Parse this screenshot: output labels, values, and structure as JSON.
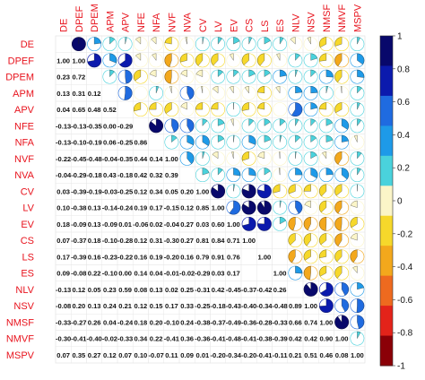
{
  "chart_data": {
    "type": "heatmap",
    "title": "",
    "variables": [
      "DE",
      "DPEF",
      "DPEM",
      "APM",
      "APV",
      "NFE",
      "NFA",
      "NVF",
      "NVA",
      "CV",
      "LV",
      "EV",
      "CS",
      "LS",
      "ES",
      "NLV",
      "NSV",
      "NMSF",
      "NMVF",
      "MSPV"
    ],
    "lower_triangle": [
      [],
      [
        "1.00"
      ],
      [
        "0.23",
        "0.72"
      ],
      [
        "0.13",
        "0.31",
        "0.12"
      ],
      [
        "0.04",
        "0.65",
        "0.48",
        "0.52"
      ],
      [
        "-0.13",
        "-0.13",
        "-0.35",
        "0.00",
        "-0.29"
      ],
      [
        "-0.13",
        "-0.10",
        "-0.19",
        "0.06",
        "-0.25",
        "0.86"
      ],
      [
        "-0.22",
        "-0.45",
        "-0.48",
        "-0.04",
        "-0.35",
        "0.44",
        "0.14"
      ],
      [
        "-0.04",
        "-0.29",
        "-0.18",
        "0.43",
        "-0.18",
        "0.42",
        "0.32",
        "0.39"
      ],
      [
        "0.03",
        "-0.39",
        "-0.19",
        "-0.03",
        "-0.25",
        "0.12",
        "0.34",
        "0.05",
        "0.20"
      ],
      [
        "0.10",
        "-0.38",
        "0.13",
        "-0.14",
        "-0.24",
        "0.19",
        "0.17",
        "-0.15",
        "0.12",
        "0.85"
      ],
      [
        "0.18",
        "-0.09",
        "0.13",
        "-0.09",
        "0.01",
        "-0.06",
        "0.02",
        "-0.04",
        "0.27",
        "0.03",
        "0.60"
      ],
      [
        "0.07",
        "-0.37",
        "0.18",
        "-0.10",
        "-0.28",
        "0.12",
        "0.31",
        "-0.30",
        "0.27",
        "0.81",
        "0.84",
        "0.71"
      ],
      [
        "0.17",
        "-0.39",
        "0.16",
        "-0.23",
        "-0.22",
        "0.16",
        "0.19",
        "-0.20",
        "0.16",
        "0.79",
        "0.91",
        "0.76"
      ],
      [
        "0.09",
        "-0.08",
        "0.22",
        "-0.10",
        "0.00",
        "0.14",
        "0.04",
        "-0.01",
        "-0.02",
        "-0.29",
        "0.03",
        "0.17"
      ],
      [
        "-0.13",
        "0.12",
        "0.05",
        "0.23",
        "0.59",
        "0.08",
        "0.13",
        "0.02",
        "0.25",
        "-0.31",
        "0.42",
        "-0.45",
        "-0.37",
        "-0.42",
        "0.26"
      ],
      [
        "-0.08",
        "0.20",
        "0.13",
        "0.24",
        "0.21",
        "0.12",
        "0.15",
        "0.17",
        "0.33",
        "-0.25",
        "-0.18",
        "-0.43",
        "-0.40",
        "-0.34",
        "-0.48",
        "0.89"
      ],
      [
        "-0.33",
        "-0.27",
        "0.26",
        "0.04",
        "-0.24",
        "0.18",
        "0.20",
        "-0.10",
        "0.24",
        "-0.38",
        "-0.37",
        "-0.49",
        "-0.36",
        "-0.28",
        "-0.33",
        "0.66",
        "0.74"
      ],
      [
        "-0.30",
        "-0.41",
        "-0.40",
        "-0.02",
        "-0.33",
        "0.34",
        "0.22",
        "-0.41",
        "0.36",
        "-0.36",
        "-0.41",
        "-0.48",
        "-0.41",
        "-0.38",
        "-0.39",
        "0.42",
        "0.42",
        "0.90"
      ],
      [
        "0.07",
        "0.35",
        "0.27",
        "0.12",
        "0.07",
        "0.10",
        "-0.07",
        "0.11",
        "0.09",
        "0.01",
        "-0.20",
        "-0.34",
        "-0.20",
        "-0.41",
        "-0.11",
        "0.21",
        "0.51",
        "0.46",
        "0.08"
      ]
    ],
    "diagonal_value": "1.00",
    "diagonal_rows": [
      "DPEF",
      "NVF",
      "CV",
      "LV",
      "EV",
      "CS",
      "LS",
      "ES",
      "NSV",
      "NMSF",
      "NMVF",
      "MSPV"
    ],
    "colorbar": {
      "range": [
        -1,
        1
      ],
      "ticks": [
        "1",
        "0.8",
        "0.6",
        "0.4",
        "0.2",
        "0",
        "-0.2",
        "-0.4",
        "-0.6",
        "-0.8",
        "-1"
      ],
      "colors": [
        "#08086b",
        "#0b1aad",
        "#1f6be0",
        "#1e9ae8",
        "#4ad2dc",
        "#fbf5c8",
        "#f6d82b",
        "#f3a81c",
        "#ee6a1f",
        "#e3231a",
        "#8b0007"
      ]
    },
    "label_color": "#e8141e"
  }
}
